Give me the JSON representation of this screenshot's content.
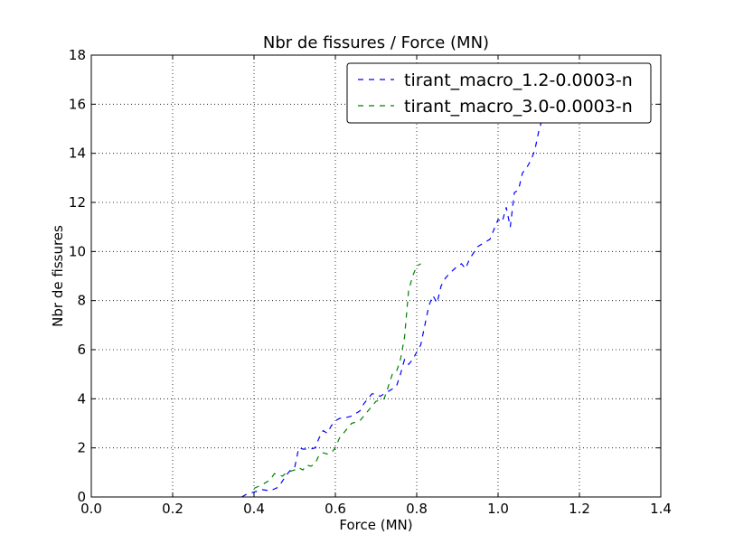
{
  "chart_data": {
    "type": "line",
    "title": "Nbr de fissures / Force (MN)",
    "xlabel": "Force (MN)",
    "ylabel": "Nbr de fissures",
    "xlim": [
      0.0,
      1.4
    ],
    "ylim": [
      0,
      18
    ],
    "xticks": [
      "0.0",
      "0.2",
      "0.4",
      "0.6",
      "0.8",
      "1.0",
      "1.2",
      "1.4"
    ],
    "yticks": [
      "0",
      "2",
      "4",
      "6",
      "8",
      "10",
      "12",
      "14",
      "16",
      "18"
    ],
    "grid": true,
    "legend_position": "top-right",
    "series": [
      {
        "name": "tirant_macro_1.2-0.0003-n",
        "color": "#0000ff",
        "style": "dashed",
        "x": [
          0.37,
          0.38,
          0.4,
          0.42,
          0.44,
          0.46,
          0.48,
          0.49,
          0.5,
          0.51,
          0.52,
          0.54,
          0.55,
          0.56,
          0.57,
          0.58,
          0.59,
          0.6,
          0.61,
          0.63,
          0.64,
          0.66,
          0.67,
          0.68,
          0.69,
          0.7,
          0.71,
          0.72,
          0.73,
          0.74,
          0.75,
          0.76,
          0.77,
          0.78,
          0.79,
          0.8,
          0.81,
          0.82,
          0.83,
          0.84,
          0.85,
          0.86,
          0.87,
          0.88,
          0.9,
          0.91,
          0.92,
          0.93,
          0.95,
          0.96,
          0.98,
          0.99,
          1.0,
          1.01,
          1.02,
          1.03,
          1.04,
          1.05,
          1.06,
          1.07,
          1.08,
          1.09,
          1.1,
          1.11,
          1.12,
          1.13,
          1.14,
          1.15,
          1.16,
          1.17,
          1.18,
          1.19,
          1.2
        ],
        "values": [
          0.0,
          0.1,
          0.2,
          0.3,
          0.25,
          0.4,
          0.9,
          1.1,
          1.2,
          2.0,
          1.95,
          1.95,
          2.0,
          2.4,
          2.7,
          2.6,
          2.9,
          3.1,
          3.2,
          3.25,
          3.3,
          3.5,
          3.8,
          4.0,
          4.2,
          4.2,
          4.1,
          4.2,
          4.3,
          4.4,
          4.5,
          5.0,
          5.6,
          5.4,
          5.6,
          5.9,
          6.2,
          7.0,
          7.8,
          8.2,
          7.9,
          8.6,
          8.9,
          9.1,
          9.4,
          9.5,
          9.3,
          9.7,
          10.2,
          10.3,
          10.5,
          10.9,
          11.3,
          11.2,
          11.8,
          11.0,
          12.4,
          12.5,
          13.2,
          13.4,
          13.7,
          14.1,
          14.9,
          15.5,
          15.8,
          16.0,
          16.1,
          16.3,
          16.4,
          16.1,
          15.8,
          15.5,
          15.4
        ]
      },
      {
        "name": "tirant_macro_3.0-0.0003-n",
        "color": "#008000",
        "style": "dashed",
        "x": [
          0.4,
          0.42,
          0.43,
          0.44,
          0.45,
          0.46,
          0.47,
          0.48,
          0.5,
          0.51,
          0.52,
          0.53,
          0.54,
          0.55,
          0.56,
          0.57,
          0.58,
          0.59,
          0.6,
          0.61,
          0.62,
          0.63,
          0.64,
          0.66,
          0.67,
          0.68,
          0.69,
          0.7,
          0.71,
          0.72,
          0.73,
          0.74,
          0.75,
          0.76,
          0.77,
          0.78,
          0.79,
          0.8,
          0.81
        ],
        "values": [
          0.35,
          0.5,
          0.6,
          0.7,
          0.95,
          0.9,
          0.85,
          1.0,
          1.1,
          1.2,
          1.1,
          1.3,
          1.25,
          1.35,
          1.7,
          1.8,
          1.75,
          1.8,
          2.0,
          2.4,
          2.6,
          2.8,
          3.0,
          3.1,
          3.3,
          3.5,
          3.7,
          3.9,
          3.95,
          4.0,
          4.5,
          5.0,
          5.1,
          5.6,
          6.5,
          8.4,
          9.0,
          9.4,
          9.5
        ]
      }
    ]
  }
}
